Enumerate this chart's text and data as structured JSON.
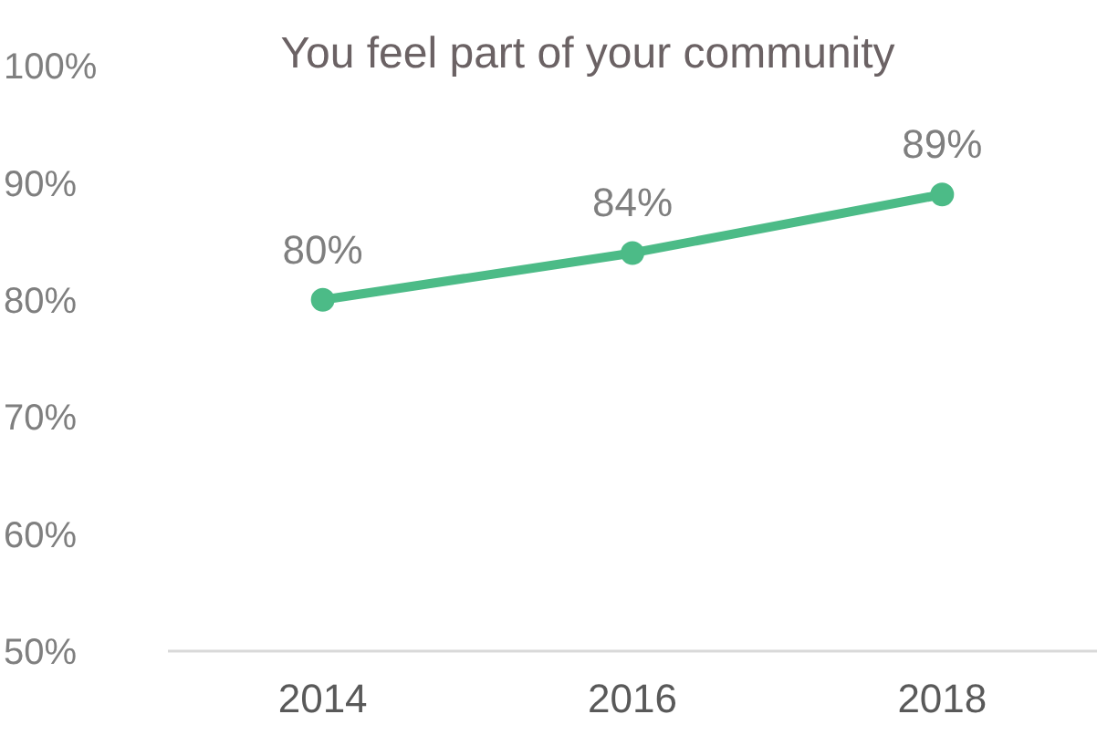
{
  "chart_data": {
    "type": "line",
    "title": "You feel part of your community",
    "categories": [
      "2014",
      "2016",
      "2018"
    ],
    "series": [
      {
        "color": "#4cbb87",
        "values": [
          80,
          84,
          89
        ],
        "value_labels": [
          "80%",
          "84%",
          "89%"
        ]
      }
    ],
    "ylim": [
      50,
      100
    ],
    "yticks": [
      {
        "value": 50,
        "label": "50%"
      },
      {
        "value": 60,
        "label": "60%"
      },
      {
        "value": 70,
        "label": "70%"
      },
      {
        "value": 80,
        "label": "80%"
      },
      {
        "value": 90,
        "label": "90%"
      },
      {
        "value": 100,
        "label": "100%"
      }
    ],
    "marker": "circle",
    "line_style": "solid"
  }
}
